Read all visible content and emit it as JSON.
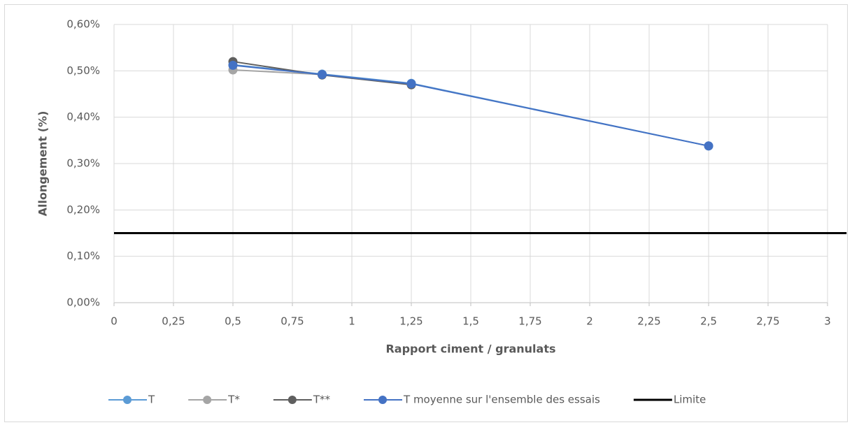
{
  "chart_data": {
    "type": "line",
    "xlabel": "Rapport ciment / granulats",
    "ylabel": "Allongement (%)",
    "xlim": [
      0,
      3
    ],
    "xticks": [
      0,
      {
        "value": 0.25,
        "label": "0,25"
      },
      {
        "value": 0.5,
        "label": "0,5"
      },
      {
        "value": 0.75,
        "label": "0,75"
      },
      1,
      {
        "value": 1.25,
        "label": "1,25"
      },
      {
        "value": 1.5,
        "label": "1,5"
      },
      {
        "value": 1.75,
        "label": "1,75"
      },
      2,
      {
        "value": 2.25,
        "label": "2,25"
      },
      {
        "value": 2.5,
        "label": "2,5"
      },
      {
        "value": 2.75,
        "label": "2,75"
      },
      3
    ],
    "ylim": [
      0,
      0.6
    ],
    "yticks": [
      {
        "value": 0,
        "label": "0,00%"
      },
      {
        "value": 0.1,
        "label": "0,10%"
      },
      {
        "value": 0.2,
        "label": "0,20%"
      },
      {
        "value": 0.3,
        "label": "0,30%"
      },
      {
        "value": 0.4,
        "label": "0,40%"
      },
      {
        "value": 0.5,
        "label": "0,50%"
      },
      {
        "value": 0.6,
        "label": "0,60%"
      }
    ],
    "grid": true,
    "legend": "bottom",
    "series": [
      {
        "name": "T",
        "color": "#5b9bd5",
        "markers": true,
        "x": [
          0.5,
          0.875,
          1.25,
          2.5
        ],
        "values": [
          0.513,
          0.493,
          0.473,
          0.338
        ]
      },
      {
        "name": "T*",
        "color": "#a5a5a5",
        "markers": true,
        "x": [
          0.5,
          0.875,
          1.25
        ],
        "values": [
          0.502,
          0.492,
          0.471
        ]
      },
      {
        "name": "T**",
        "color": "#5f5f5f",
        "markers": true,
        "x": [
          0.5,
          0.875,
          1.25
        ],
        "values": [
          0.52,
          0.491,
          0.47
        ]
      },
      {
        "name": "T moyenne sur l'ensemble des essais",
        "color": "#4472c4",
        "markers": true,
        "x": [
          0.5,
          0.875,
          1.25,
          2.5
        ],
        "values": [
          0.512,
          0.492,
          0.472,
          0.338
        ]
      },
      {
        "name": "Limite",
        "color": "#000000",
        "markers": false,
        "x": [
          0,
          3.08
        ],
        "values": [
          0.15,
          0.15
        ]
      }
    ]
  }
}
